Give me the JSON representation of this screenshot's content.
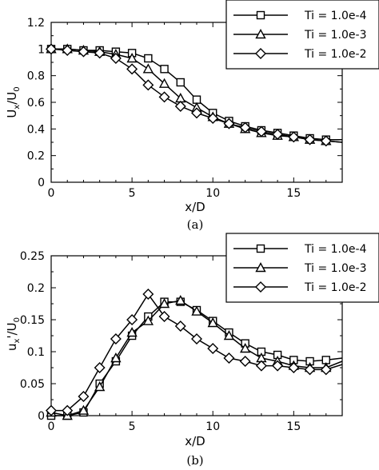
{
  "chart_data": [
    {
      "type": "line",
      "caption": "(a)",
      "xlabel": "x/D",
      "ylabel": "U_x/U_0",
      "xlim": [
        0,
        18
      ],
      "ylim": [
        0,
        1.2
      ],
      "xticks": [
        "0",
        "5",
        "10",
        "15"
      ],
      "yticks": [
        "0",
        "0.2",
        "0.4",
        "0.6",
        "0.8",
        "1",
        "1.2"
      ],
      "legend_position": "top-right",
      "series": [
        {
          "name": "Ti = 1.0e-4",
          "marker": "square",
          "x": [
            0,
            1,
            2,
            3,
            4,
            5,
            6,
            7,
            8,
            9,
            10,
            11,
            12,
            13,
            14,
            15,
            16,
            17,
            18
          ],
          "y": [
            1.0,
            1.0,
            0.99,
            0.99,
            0.98,
            0.97,
            0.93,
            0.85,
            0.75,
            0.62,
            0.52,
            0.46,
            0.42,
            0.39,
            0.37,
            0.35,
            0.33,
            0.32,
            0.32
          ]
        },
        {
          "name": "Ti = 1.0e-3",
          "marker": "triangle",
          "x": [
            0,
            1,
            2,
            3,
            4,
            5,
            6,
            7,
            8,
            9,
            10,
            11,
            12,
            13,
            14,
            15,
            16,
            17,
            18
          ],
          "y": [
            1.0,
            1.0,
            0.99,
            0.98,
            0.96,
            0.93,
            0.85,
            0.74,
            0.63,
            0.56,
            0.49,
            0.44,
            0.4,
            0.37,
            0.35,
            0.34,
            0.32,
            0.31,
            0.3
          ]
        },
        {
          "name": "Ti = 1.0e-2",
          "marker": "diamond",
          "x": [
            0,
            1,
            2,
            3,
            4,
            5,
            6,
            7,
            8,
            9,
            10,
            11,
            12,
            13,
            14,
            15,
            16,
            17,
            18
          ],
          "y": [
            1.0,
            0.99,
            0.98,
            0.97,
            0.93,
            0.85,
            0.73,
            0.64,
            0.57,
            0.52,
            0.48,
            0.44,
            0.41,
            0.38,
            0.36,
            0.34,
            0.32,
            0.31,
            0.3
          ]
        }
      ]
    },
    {
      "type": "line",
      "caption": "(b)",
      "xlabel": "x/D",
      "ylabel": "u_x'/U_0",
      "xlim": [
        0,
        18
      ],
      "ylim": [
        0,
        0.25
      ],
      "xticks": [
        "0",
        "5",
        "10",
        "15"
      ],
      "yticks": [
        "0",
        "0.05",
        "0.1",
        "0.15",
        "0.2",
        "0.25"
      ],
      "legend_position": "top-right",
      "series": [
        {
          "name": "Ti = 1.0e-4",
          "marker": "square",
          "x": [
            0,
            1,
            2,
            3,
            4,
            5,
            6,
            7,
            8,
            9,
            10,
            11,
            12,
            13,
            14,
            15,
            16,
            17,
            18
          ],
          "y": [
            0.0,
            0.0,
            0.005,
            0.05,
            0.085,
            0.125,
            0.155,
            0.178,
            0.178,
            0.165,
            0.148,
            0.13,
            0.113,
            0.1,
            0.095,
            0.087,
            0.085,
            0.087,
            0.09
          ]
        },
        {
          "name": "Ti = 1.0e-3",
          "marker": "triangle",
          "x": [
            0,
            1,
            2,
            3,
            4,
            5,
            6,
            7,
            8,
            9,
            10,
            11,
            12,
            13,
            14,
            15,
            16,
            17,
            18
          ],
          "y": [
            0.005,
            0.0,
            0.008,
            0.045,
            0.09,
            0.13,
            0.148,
            0.175,
            0.18,
            0.163,
            0.145,
            0.125,
            0.105,
            0.09,
            0.085,
            0.078,
            0.075,
            0.075,
            0.085
          ]
        },
        {
          "name": "Ti = 1.0e-2",
          "marker": "diamond",
          "x": [
            0,
            1,
            2,
            3,
            4,
            5,
            6,
            7,
            8,
            9,
            10,
            11,
            12,
            13,
            14,
            15,
            16,
            17,
            18
          ],
          "y": [
            0.008,
            0.008,
            0.03,
            0.075,
            0.12,
            0.15,
            0.19,
            0.155,
            0.14,
            0.12,
            0.105,
            0.09,
            0.085,
            0.078,
            0.078,
            0.075,
            0.072,
            0.072,
            0.08
          ]
        }
      ]
    }
  ]
}
